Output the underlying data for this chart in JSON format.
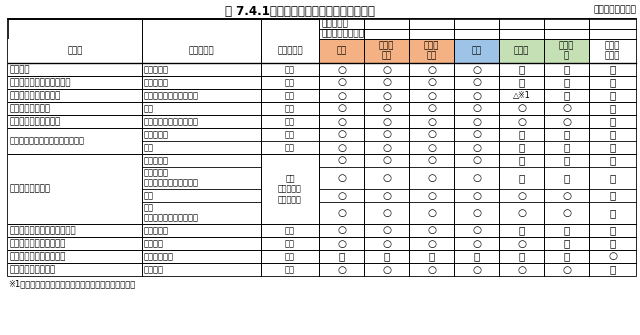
{
  "title": "表 7.4.1　住宅復興に向けた主な支援制度",
  "source": "資料：国土交通省",
  "footnote": "※1：支援の対象に含まれるかは市町村により異なる。",
  "header1": "制度の対象",
  "header2": "住家の被害の程度",
  "col_headers": [
    "制度名",
    "支援の目的",
    "支援の種類",
    "全壊",
    "大規模\n半壊",
    "中規模\n半壊",
    "半壊",
    "準半壊",
    "一部損\n壊",
    "液状化\n宅地等"
  ],
  "col_colors": [
    "white",
    "white",
    "white",
    "#F4B183",
    "#F4B183",
    "#F4B183",
    "#9DC3E6",
    "#C5E0B4",
    "#C5E0B4",
    "white"
  ],
  "rows": [
    [
      "公費解体",
      "解体・撤去",
      "給付",
      "○",
      "○",
      "○",
      "○",
      "－",
      "－",
      "－"
    ],
    [
      "公費解体（費用償還制度）",
      "解体・撤去",
      "給付",
      "○",
      "○",
      "○",
      "○",
      "－",
      "－",
      "－"
    ],
    [
      "被災者生活再建支援金",
      "建設・購入、補修、賃借",
      "給付",
      "○",
      "○",
      "○",
      "○",
      "△※1",
      "－",
      "－"
    ],
    [
      "生活福祉資金貸付",
      "補修",
      "貸付",
      "○",
      "○",
      "○",
      "○",
      "○",
      "○",
      "－"
    ],
    [
      "母子父子寡婦福祉資金",
      "建設・購入、補修、移転",
      "貸付",
      "○",
      "○",
      "○",
      "○",
      "○",
      "○",
      "－"
    ],
    [
      "地域福祉推進支援臨時特例給付金",
      "建設・購入",
      "給付",
      "○",
      "○",
      "○",
      "○",
      "－",
      "－",
      "－"
    ],
    [
      "地域福祉推進支援臨時特例給付金",
      "賃借",
      "給付",
      "○",
      "○",
      "○",
      "○",
      "－",
      "－",
      "－"
    ],
    [
      "災害復興住宅融資",
      "建設・購入",
      "",
      "○",
      "○",
      "○",
      "○",
      "－",
      "－",
      "－"
    ],
    [
      "災害復興住宅融資",
      "建設・購入\n〈高齢者向け返済特例〉",
      "貸付\n（住宅金融\n支援機構）",
      "○",
      "○",
      "○",
      "○",
      "－",
      "－",
      "－"
    ],
    [
      "災害復興住宅融資",
      "補修",
      "",
      "○",
      "○",
      "○",
      "○",
      "○",
      "○",
      "－"
    ],
    [
      "災害復興住宅融資",
      "補修\n〈高齢者向け返済特例〉",
      "",
      "○",
      "○",
      "○",
      "○",
      "○",
      "○",
      "－"
    ],
    [
      "自宅再建利子助成事業給付金",
      "建設・購入",
      "給付",
      "○",
      "○",
      "○",
      "○",
      "－",
      "－",
      "－"
    ],
    [
      "被災者住宅応急修理制度",
      "応急修理",
      "給付",
      "○",
      "○",
      "○",
      "○",
      "○",
      "－",
      "－"
    ],
    [
      "被災宅地等復旧支援事業",
      "宅地等の復旧",
      "給付",
      "－",
      "－",
      "－",
      "－",
      "－",
      "－",
      "○"
    ],
    [
      "住宅耐震化促進事業",
      "耐震改修",
      "給付",
      "○",
      "○",
      "○",
      "○",
      "○",
      "○",
      "－"
    ]
  ]
}
